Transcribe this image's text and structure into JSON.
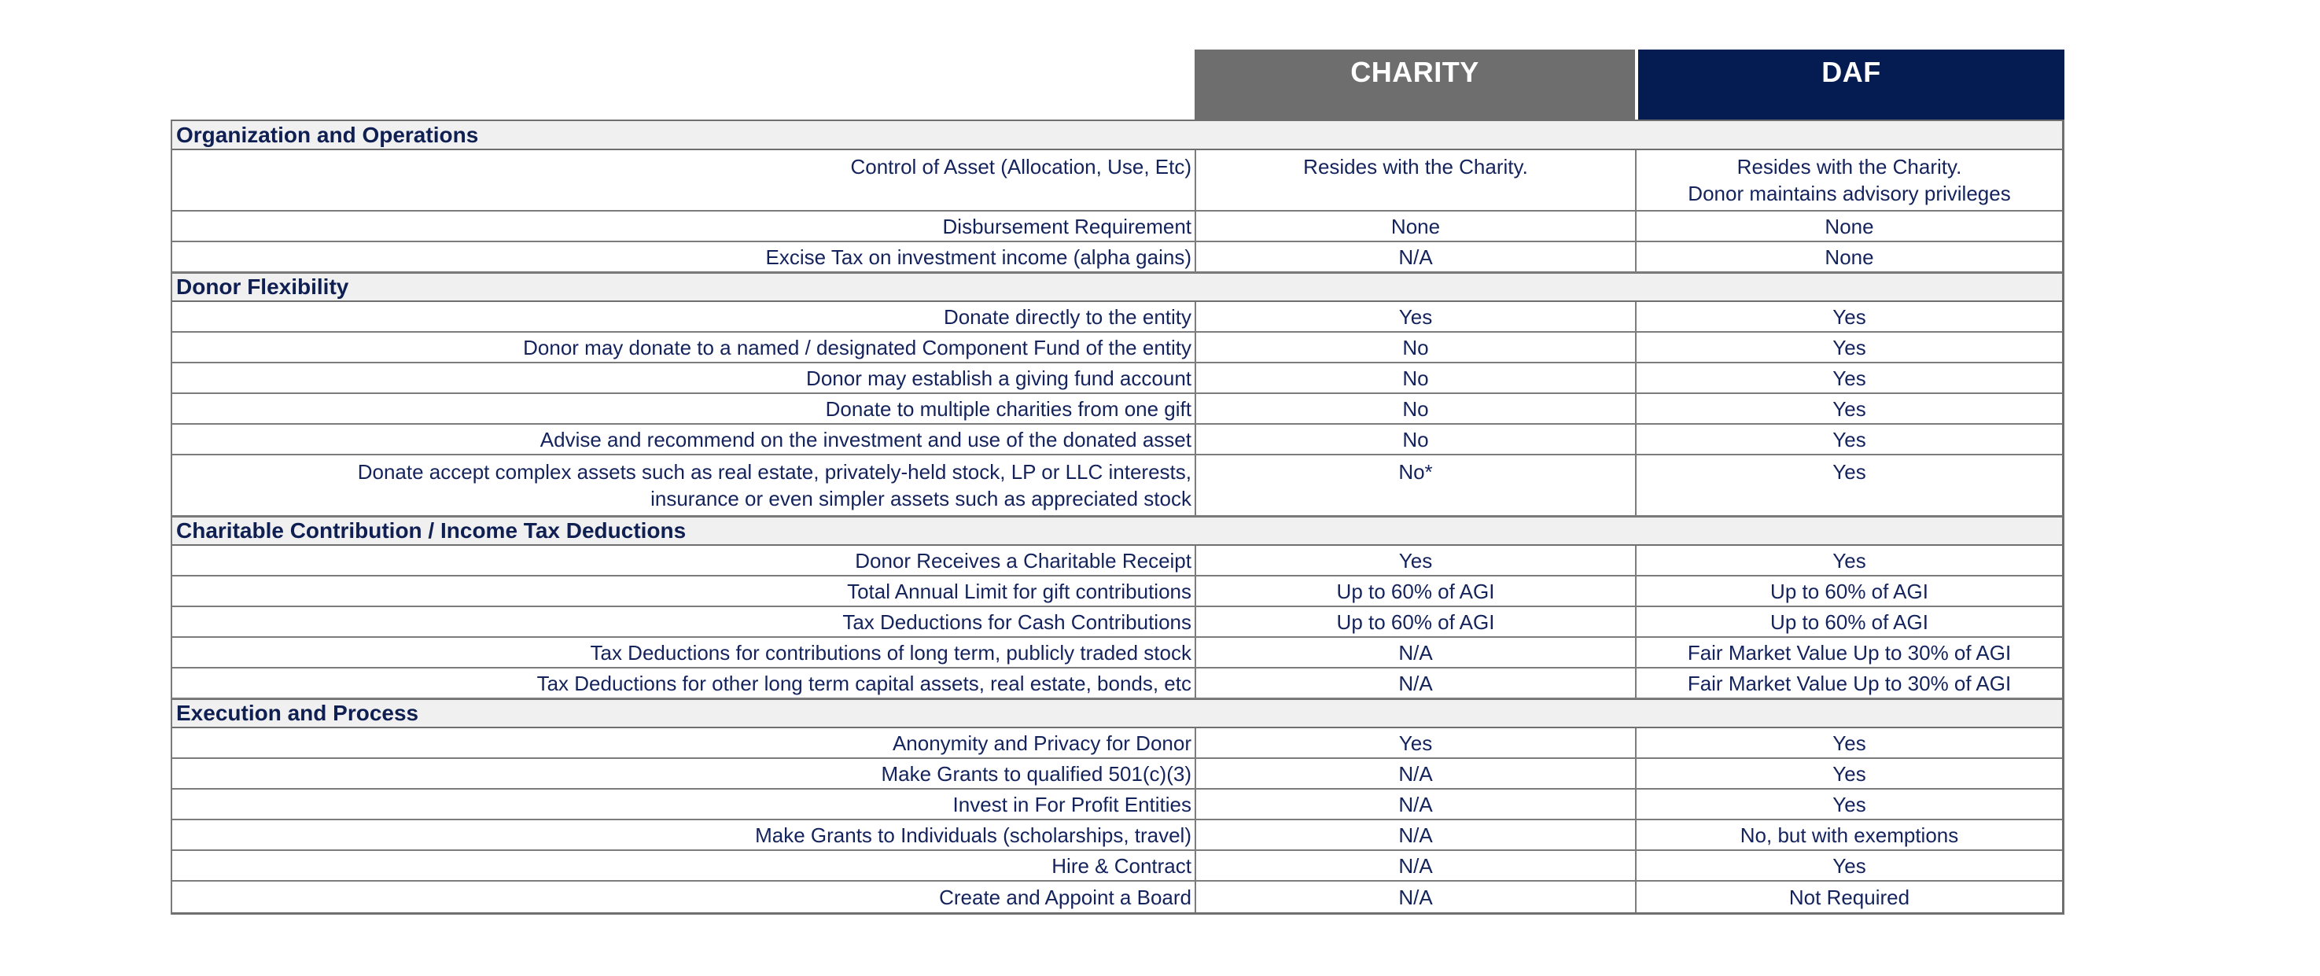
{
  "page": {
    "background": "#ffffff"
  },
  "table": {
    "header": {
      "charity_label": "CHARITY",
      "daf_label": "DAF",
      "charity_bg": "#6e6e6e",
      "daf_bg": "#051c52",
      "text_color": "#ffffff"
    },
    "colors": {
      "body_text": "#14235c",
      "section_band_bg": "#f0f0f0",
      "border": "#7c7c7c"
    },
    "sections": [
      {
        "title": "Organization and Operations",
        "rows": [
          {
            "label": "Control of Asset (Allocation, Use, Etc)",
            "charity": "Resides with the Charity.",
            "daf": "Resides with the Charity.\nDonor maintains advisory privileges",
            "tall": true
          },
          {
            "label": "Disbursement Requirement",
            "charity": "None",
            "daf": "None"
          },
          {
            "label": "Excise Tax on investment income (alpha gains)",
            "charity": "N/A",
            "daf": "None"
          }
        ]
      },
      {
        "title": "Donor Flexibility",
        "rows": [
          {
            "label": "Donate directly to the entity",
            "charity": "Yes",
            "daf": "Yes"
          },
          {
            "label": "Donor may donate to a named / designated Component Fund of the entity",
            "charity": "No",
            "daf": "Yes"
          },
          {
            "label": "Donor may establish a giving fund account",
            "charity": "No",
            "daf": "Yes"
          },
          {
            "label": "Donate to multiple charities from one gift",
            "charity": "No",
            "daf": "Yes"
          },
          {
            "label": "Advise and recommend on the investment and use of the donated asset",
            "charity": "No",
            "daf": "Yes"
          },
          {
            "label": "Donate accept complex assets such as real estate, privately-held stock, LP or LLC interests,\ninsurance or even simpler assets such as appreciated stock",
            "charity": "No*",
            "daf": "Yes",
            "tall": true
          }
        ]
      },
      {
        "title": "Charitable Contribution / Income Tax Deductions",
        "rows": [
          {
            "label": "Donor Receives a Charitable Receipt",
            "charity": "Yes",
            "daf": "Yes"
          },
          {
            "label": "Total Annual Limit for gift contributions",
            "charity": "Up to 60% of AGI",
            "daf": "Up to 60% of AGI"
          },
          {
            "label": "Tax Deductions for Cash Contributions",
            "charity": "Up to 60% of AGI",
            "daf": "Up to 60% of AGI"
          },
          {
            "label": "Tax Deductions for contributions of long term, publicly traded stock",
            "charity": "N/A",
            "daf": "Fair Market Value Up to 30% of AGI"
          },
          {
            "label": "Tax Deductions for other long term capital assets, real estate, bonds, etc",
            "charity": "N/A",
            "daf": "Fair Market Value Up to 30% of AGI"
          }
        ]
      },
      {
        "title": "Execution and Process",
        "rows": [
          {
            "label": "Anonymity and Privacy for Donor",
            "charity": "Yes",
            "daf": "Yes"
          },
          {
            "label": "Make Grants to qualified 501(c)(3)",
            "charity": "N/A",
            "daf": "Yes"
          },
          {
            "label": "Invest in For Profit Entities",
            "charity": "N/A",
            "daf": "Yes"
          },
          {
            "label": "Make Grants to Individuals (scholarships, travel)",
            "charity": "N/A",
            "daf": "No, but with exemptions"
          },
          {
            "label": "Hire & Contract",
            "charity": "N/A",
            "daf": "Yes"
          },
          {
            "label": "Create and Appoint a Board",
            "charity": "N/A",
            "daf": "Not Required"
          }
        ]
      }
    ]
  }
}
